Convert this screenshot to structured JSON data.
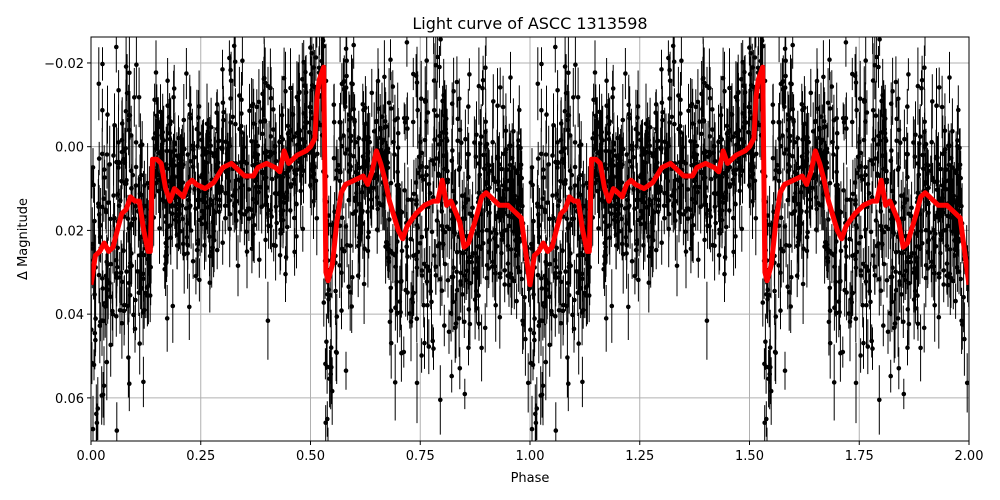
{
  "chart_data": {
    "type": "scatter",
    "title": "Light curve of ASCC 1313598",
    "xlabel": "Phase",
    "ylabel": "Δ Magnitude",
    "xlim": [
      0,
      2
    ],
    "ylim": [
      0.0703,
      -0.0262
    ],
    "y_inverted": true,
    "grid": true,
    "xticks": [
      0,
      0.25,
      0.5,
      0.75,
      1.0,
      1.25,
      1.5,
      1.75,
      2.0
    ],
    "xtick_labels": [
      "0.00",
      "0.25",
      "0.50",
      "0.75",
      "1.00",
      "1.25",
      "1.50",
      "1.75",
      "2.00"
    ],
    "yticks": [
      -0.02,
      0,
      0.02,
      0.04,
      0.06
    ],
    "ytick_labels": [
      "−0.02",
      "0.00",
      "0.02",
      "0.04",
      "0.06"
    ],
    "period_repeat": true,
    "colors": {
      "points": "#000000",
      "model": "#ff0000",
      "grid": "#b0b0b0"
    },
    "series": [
      {
        "kind": "error-bar points",
        "color": "#000000",
        "scatter_sigma": 0.014,
        "errorbar_typical": 0.006
      },
      {
        "kind": "binned model curve",
        "color": "#ff0000",
        "phase": [
          0,
          0.01,
          0.02,
          0.03,
          0.04,
          0.05,
          0.06,
          0.07,
          0.08,
          0.09,
          0.1,
          0.11,
          0.12,
          0.13,
          0.135,
          0.14,
          0.15,
          0.16,
          0.17,
          0.18,
          0.19,
          0.2,
          0.21,
          0.22,
          0.23,
          0.24,
          0.26,
          0.28,
          0.3,
          0.32,
          0.33,
          0.35,
          0.37,
          0.38,
          0.4,
          0.42,
          0.43,
          0.44,
          0.45,
          0.47,
          0.49,
          0.5,
          0.505,
          0.51,
          0.515,
          0.52,
          0.53,
          0.535,
          0.54,
          0.55,
          0.56,
          0.57,
          0.58,
          0.6,
          0.62,
          0.63,
          0.64,
          0.65,
          0.66,
          0.67,
          0.68,
          0.7,
          0.71,
          0.72,
          0.74,
          0.76,
          0.78,
          0.79,
          0.8,
          0.81,
          0.82,
          0.84,
          0.85,
          0.86,
          0.88,
          0.89,
          0.9,
          0.92,
          0.93,
          0.95,
          0.96,
          0.97,
          0.98,
          0.99,
          1.0
        ],
        "mag": [
          0.033,
          0.026,
          0.025,
          0.023,
          0.025,
          0.024,
          0.02,
          0.016,
          0.015,
          0.012,
          0.013,
          0.013,
          0.02,
          0.025,
          0.025,
          0.003,
          0.003,
          0.004,
          0.01,
          0.013,
          0.01,
          0.011,
          0.012,
          0.009,
          0.008,
          0.009,
          0.01,
          0.0085,
          0.005,
          0.004,
          0.005,
          0.007,
          0.007,
          0.005,
          0.004,
          0.005,
          0.006,
          0.001,
          0.004,
          0.002,
          0.001,
          0.0,
          -0.001,
          -0.002,
          -0.012,
          -0.016,
          -0.019,
          0.03,
          0.032,
          0.028,
          0.018,
          0.011,
          0.009,
          0.008,
          0.007,
          0.009,
          0.006,
          0.001,
          0.004,
          0.008,
          0.013,
          0.02,
          0.022,
          0.019,
          0.016,
          0.014,
          0.013,
          0.013,
          0.008,
          0.014,
          0.013,
          0.018,
          0.024,
          0.023,
          0.016,
          0.012,
          0.011,
          0.013,
          0.014,
          0.014,
          0.015,
          0.016,
          0.017,
          0.025,
          0.033
        ]
      }
    ]
  }
}
